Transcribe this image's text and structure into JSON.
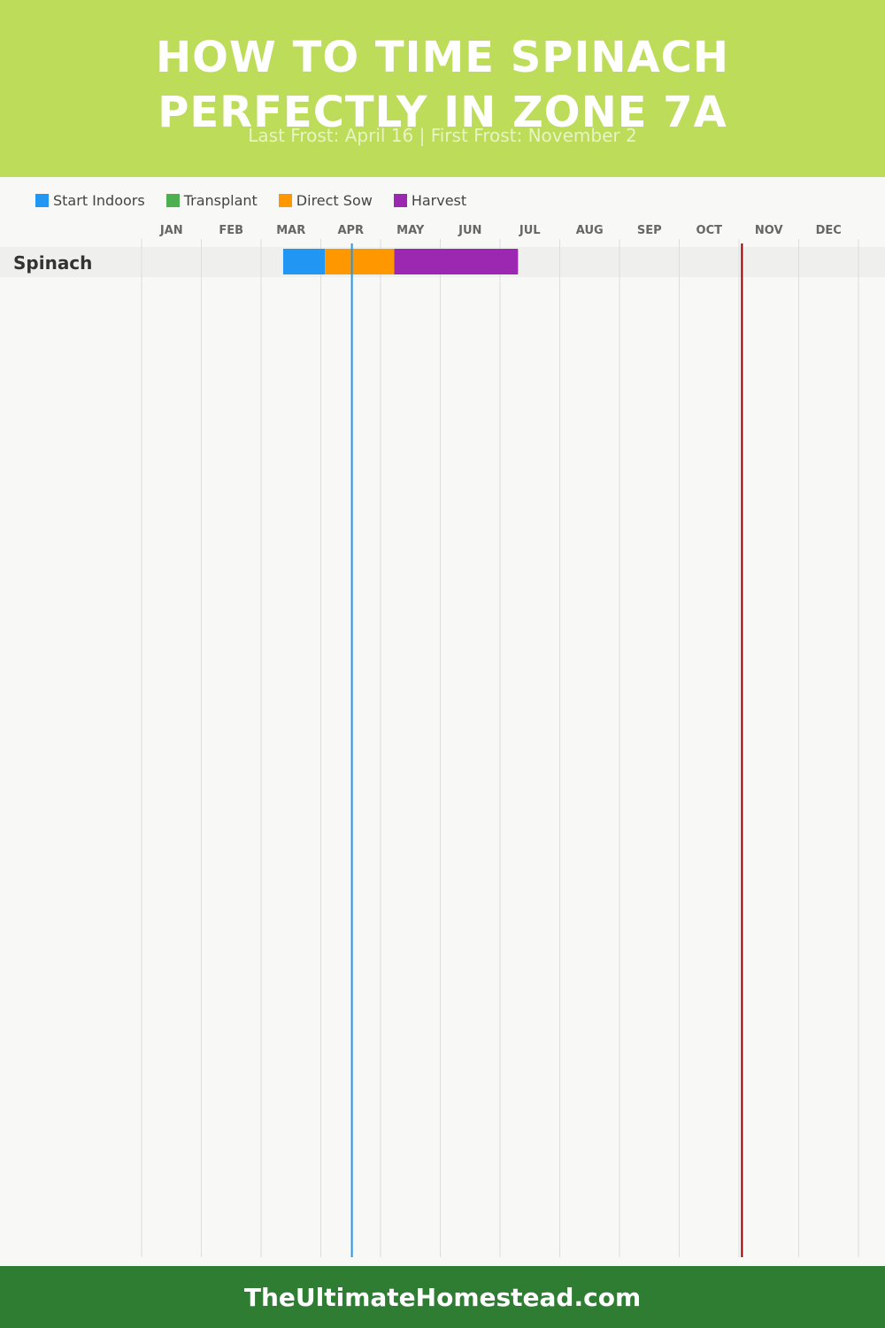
{
  "header": {
    "title_line1": "HOW TO TIME SPINACH",
    "title_line2": "PERFECTLY IN ZONE 7A",
    "subtitle": "Last Frost: April 16 | First Frost: November 2",
    "background": "#bcdc5a"
  },
  "legend": [
    {
      "label": "Start Indoors",
      "color": "#2196f3"
    },
    {
      "label": "Transplant",
      "color": "#4caf50"
    },
    {
      "label": "Direct Sow",
      "color": "#ff9800"
    },
    {
      "label": "Harvest",
      "color": "#9c27b0"
    }
  ],
  "chart_data": {
    "type": "gantt",
    "months": [
      "JAN",
      "FEB",
      "MAR",
      "APR",
      "MAY",
      "JUN",
      "JUL",
      "AUG",
      "SEP",
      "OCT",
      "NOV",
      "DEC"
    ],
    "x_range_months": [
      0,
      12
    ],
    "crops": [
      {
        "name": "Spinach",
        "phases": [
          {
            "phase": "Start Indoors",
            "start": 2.37,
            "end": 3.07,
            "color": "#2196f3"
          },
          {
            "phase": "Direct Sow",
            "start": 3.07,
            "end": 4.23,
            "color": "#ff9800"
          },
          {
            "phase": "Harvest",
            "start": 4.23,
            "end": 6.3,
            "color": "#9c27b0"
          }
        ]
      }
    ],
    "markers": [
      {
        "name": "Last Frost",
        "value": 3.52,
        "color": "#2196f3"
      },
      {
        "name": "First Frost",
        "value": 10.05,
        "color": "#8b0000"
      }
    ],
    "grid": true
  },
  "footer": {
    "text": "TheUltimateHomestead.com",
    "background": "#2e7d32"
  }
}
